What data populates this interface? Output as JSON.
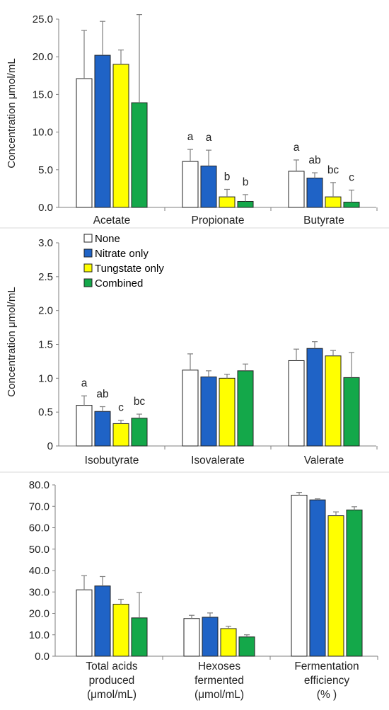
{
  "series_colors": {
    "None": "#ffffff",
    "Nitrate only": "#1f63c6",
    "Tungstate only": "#ffff00",
    "Combined": "#14a84a"
  },
  "legend": [
    "None",
    "Nitrate only",
    "Tungstate only",
    "Combined"
  ],
  "chart_data": [
    {
      "type": "bar",
      "ylabel": "Concentration μmol/mL",
      "ylim": [
        0,
        25
      ],
      "yticks": [
        "0.0",
        "5.0",
        "10.0",
        "15.0",
        "20.0",
        "25.0"
      ],
      "categories": [
        "Acetate",
        "Propionate",
        "Butyrate"
      ],
      "series": [
        {
          "name": "None",
          "values": [
            17.1,
            6.1,
            4.8
          ],
          "errors": [
            6.4,
            1.6,
            1.5
          ]
        },
        {
          "name": "Nitrate only",
          "values": [
            20.2,
            5.5,
            3.9
          ],
          "errors": [
            4.5,
            2.1,
            0.7
          ]
        },
        {
          "name": "Tungstate only",
          "values": [
            19.0,
            1.4,
            1.4
          ],
          "errors": [
            1.9,
            1.0,
            1.9
          ]
        },
        {
          "name": "Combined",
          "values": [
            13.9,
            0.8,
            0.7
          ],
          "errors": [
            11.7,
            0.9,
            1.6
          ]
        }
      ],
      "annotations": [
        {
          "category": "Propionate",
          "labels": [
            "a",
            "a",
            "b",
            "b"
          ]
        },
        {
          "category": "Butyrate",
          "labels": [
            "a",
            "ab",
            "bc",
            "c"
          ]
        }
      ]
    },
    {
      "type": "bar",
      "ylabel": "Concentration μmol/mL",
      "ylim": [
        0,
        3.0
      ],
      "yticks": [
        "0",
        "0.5",
        "1.0",
        "1.5",
        "2.0",
        "2.5",
        "3.0"
      ],
      "categories": [
        "Isobutyrate",
        "Isovalerate",
        "Valerate"
      ],
      "series": [
        {
          "name": "None",
          "values": [
            0.6,
            1.12,
            1.26
          ],
          "errors": [
            0.14,
            0.24,
            0.17
          ]
        },
        {
          "name": "Nitrate only",
          "values": [
            0.51,
            1.02,
            1.44
          ],
          "errors": [
            0.07,
            0.09,
            0.1
          ]
        },
        {
          "name": "Tungstate only",
          "values": [
            0.33,
            1.0,
            1.33
          ],
          "errors": [
            0.05,
            0.06,
            0.08
          ]
        },
        {
          "name": "Combined",
          "values": [
            0.41,
            1.11,
            1.01
          ],
          "errors": [
            0.06,
            0.1,
            0.37
          ]
        }
      ],
      "annotations": [
        {
          "category": "Isobutyrate",
          "labels": [
            "a",
            "ab",
            "c",
            "bc"
          ]
        }
      ]
    },
    {
      "type": "bar",
      "ylim": [
        0,
        80
      ],
      "yticks": [
        "0.0",
        "10.0",
        "20.0",
        "30.0",
        "40.0",
        "50.0",
        "60.0",
        "70.0",
        "80.0"
      ],
      "categories": [
        [
          "Total acids",
          "produced",
          "(μmol/mL)"
        ],
        [
          "Hexoses",
          "fermented",
          "(μmol/mL)"
        ],
        [
          "Fermentation",
          "efficiency",
          "(% )"
        ]
      ],
      "series": [
        {
          "name": "None",
          "values": [
            31.0,
            17.6,
            75.2
          ],
          "errors": [
            6.6,
            1.5,
            1.3
          ]
        },
        {
          "name": "Nitrate only",
          "values": [
            32.8,
            18.2,
            73.0
          ],
          "errors": [
            4.4,
            2.0,
            0.5
          ]
        },
        {
          "name": "Tungstate only",
          "values": [
            24.3,
            12.9,
            65.6
          ],
          "errors": [
            2.3,
            1.1,
            1.8
          ]
        },
        {
          "name": "Combined",
          "values": [
            17.9,
            9.0,
            68.3
          ],
          "errors": [
            11.8,
            1.0,
            1.5
          ]
        }
      ]
    }
  ]
}
